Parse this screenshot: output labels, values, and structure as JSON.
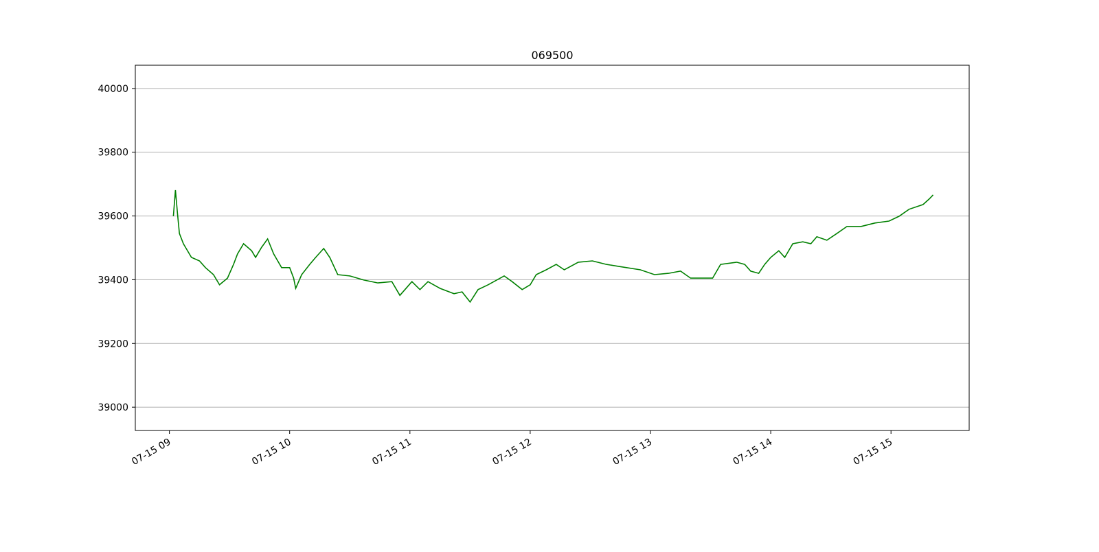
{
  "chart_data": {
    "type": "line",
    "title": "069500",
    "x": [
      "07-15 09:02",
      "07-15 09:03",
      "07-15 09:04",
      "07-15 09:05",
      "07-15 09:07",
      "07-15 09:08",
      "07-15 09:11",
      "07-15 09:15",
      "07-15 09:18",
      "07-15 09:22",
      "07-15 09:25",
      "07-15 09:29",
      "07-15 09:32",
      "07-15 09:34",
      "07-15 09:37",
      "07-15 09:41",
      "07-15 09:43",
      "07-15 09:46",
      "07-15 09:49",
      "07-15 09:52",
      "07-15 09:56",
      "07-15 10:00",
      "07-15 10:02",
      "07-15 10:03",
      "07-15 10:06",
      "07-15 10:10",
      "07-15 10:13",
      "07-15 10:17",
      "07-15 10:20",
      "07-15 10:24",
      "07-15 10:30",
      "07-15 10:37",
      "07-15 10:44",
      "07-15 10:51",
      "07-15 10:55",
      "07-15 11:01",
      "07-15 11:05",
      "07-15 11:09",
      "07-15 11:15",
      "07-15 11:22",
      "07-15 11:26",
      "07-15 11:30",
      "07-15 11:34",
      "07-15 11:39",
      "07-15 11:47",
      "07-15 11:51",
      "07-15 11:56",
      "07-15 12:00",
      "07-15 12:03",
      "07-15 12:08",
      "07-15 12:13",
      "07-15 12:17",
      "07-15 12:24",
      "07-15 12:31",
      "07-15 12:38",
      "07-15 12:44",
      "07-15 12:55",
      "07-15 13:02",
      "07-15 13:09",
      "07-15 13:15",
      "07-15 13:20",
      "07-15 13:26",
      "07-15 13:31",
      "07-15 13:35",
      "07-15 13:43",
      "07-15 13:47",
      "07-15 13:50",
      "07-15 13:54",
      "07-15 13:57",
      "07-15 14:00",
      "07-15 14:04",
      "07-15 14:07",
      "07-15 14:11",
      "07-15 14:16",
      "07-15 14:20",
      "07-15 14:23",
      "07-15 14:28",
      "07-15 14:33",
      "07-15 14:38",
      "07-15 14:45",
      "07-15 14:52",
      "07-15 14:59",
      "07-15 15:04",
      "07-15 15:09",
      "07-15 15:16",
      "07-15 15:19",
      "07-15 15:21"
    ],
    "series": [
      {
        "name": "069500",
        "color": "#008000",
        "values": [
          39599,
          39681,
          39610,
          39545,
          39513,
          39502,
          39470,
          39459,
          39438,
          39416,
          39384,
          39405,
          39448,
          39481,
          39513,
          39491,
          39470,
          39502,
          39528,
          39481,
          39438,
          39438,
          39405,
          39373,
          39416,
          39448,
          39470,
          39498,
          39470,
          39416,
          39412,
          39399,
          39390,
          39394,
          39351,
          39394,
          39369,
          39394,
          39373,
          39356,
          39362,
          39330,
          39369,
          39384,
          39412,
          39394,
          39369,
          39384,
          39416,
          39431,
          39448,
          39431,
          39455,
          39459,
          39448,
          39442,
          39431,
          39416,
          39420,
          39427,
          39405,
          39405,
          39405,
          39448,
          39455,
          39448,
          39427,
          39420,
          39448,
          39470,
          39491,
          39470,
          39513,
          39519,
          39513,
          39535,
          39524,
          39545,
          39567,
          39567,
          39578,
          39584,
          39599,
          39621,
          39636,
          39653,
          39666
        ]
      }
    ],
    "xlim": [
      "07-15 08:43",
      "07-15 15:39"
    ],
    "xticks": [
      {
        "value": "07-15 09:00",
        "label": "07-15 09"
      },
      {
        "value": "07-15 10:00",
        "label": "07-15 10"
      },
      {
        "value": "07-15 11:00",
        "label": "07-15 11"
      },
      {
        "value": "07-15 12:00",
        "label": "07-15 12"
      },
      {
        "value": "07-15 13:00",
        "label": "07-15 13"
      },
      {
        "value": "07-15 14:00",
        "label": "07-15 14"
      },
      {
        "value": "07-15 15:00",
        "label": "07-15 15"
      }
    ],
    "ylim": [
      38927,
      40073
    ],
    "yticks": [
      39000,
      39200,
      39400,
      39600,
      39800,
      40000
    ],
    "grid": "y"
  }
}
